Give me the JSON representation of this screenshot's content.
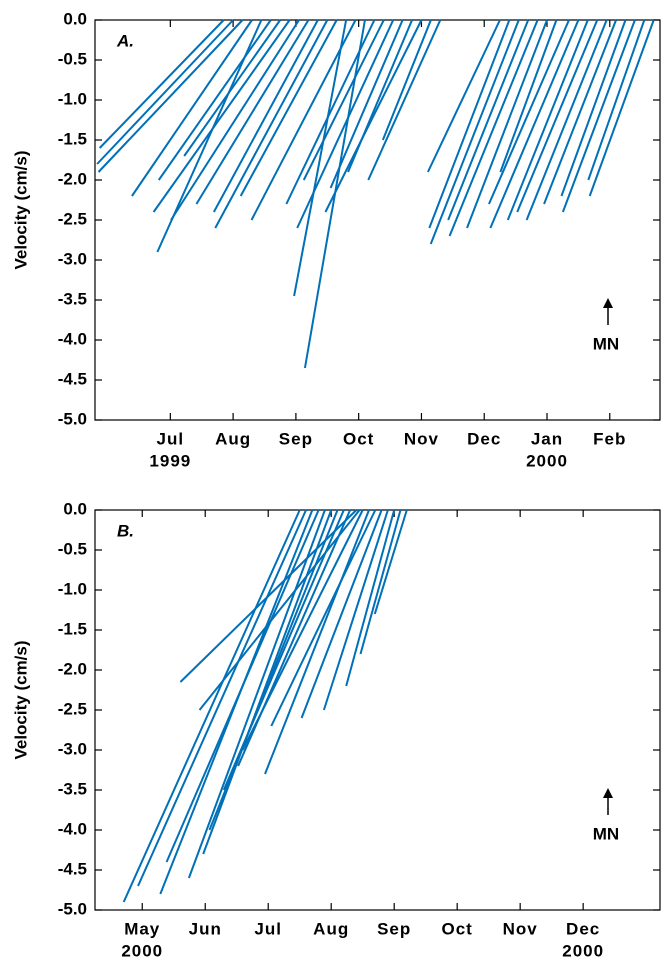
{
  "chart_data": [
    {
      "type": "stick",
      "panel_label": "A.",
      "ylabel": "Velocity (cm/s)",
      "annotation": "MN",
      "color": "#0070b8",
      "xlim": [
        -0.2,
        8.8
      ],
      "xticks": [
        {
          "value": 1,
          "label": "Jul"
        },
        {
          "value": 2,
          "label": "Aug"
        },
        {
          "value": 3,
          "label": "Sep"
        },
        {
          "value": 4,
          "label": "Oct"
        },
        {
          "value": 5,
          "label": "Nov"
        },
        {
          "value": 6,
          "label": "Dec"
        },
        {
          "value": 7,
          "label": "Jan"
        },
        {
          "value": 8,
          "label": "Feb"
        }
      ],
      "xtick_years": [
        {
          "value": 1,
          "label": "1999"
        },
        {
          "value": 7,
          "label": "2000"
        }
      ],
      "ylim": [
        -5.0,
        0.0
      ],
      "yticks": [
        {
          "value": 0,
          "label": "0.0"
        },
        {
          "value": -0.5,
          "label": "-0.5"
        },
        {
          "value": -1,
          "label": "-1.0"
        },
        {
          "value": -1.5,
          "label": "-1.5"
        },
        {
          "value": -2,
          "label": "-2.0"
        },
        {
          "value": -2.5,
          "label": "-2.5"
        },
        {
          "value": -3,
          "label": "-3.0"
        },
        {
          "value": -3.5,
          "label": "-3.5"
        },
        {
          "value": -4,
          "label": "-4.0"
        },
        {
          "value": -4.5,
          "label": "-4.5"
        },
        {
          "value": -5,
          "label": "-5.0"
        }
      ],
      "x": [
        1.85,
        2.0,
        2.15,
        2.3,
        2.45,
        2.6,
        2.75,
        2.9,
        3.05,
        3.2,
        3.35,
        3.5,
        3.65,
        3.8,
        3.95,
        4.1,
        4.25,
        4.4,
        4.55,
        4.7,
        4.85,
        5.0,
        5.15,
        5.3,
        6.25,
        6.4,
        6.55,
        6.7,
        6.85,
        7.0,
        7.15,
        7.35,
        7.5,
        7.65,
        7.8,
        7.95,
        8.1,
        8.25,
        8.4,
        8.55,
        8.7
      ],
      "values": [
        -1.6,
        -1.8,
        -1.9,
        -2.2,
        -2.9,
        -2.0,
        -1.7,
        -2.4,
        -2.5,
        -2.3,
        -2.4,
        -2.6,
        -2.2,
        -3.45,
        -2.5,
        -4.35,
        -2.3,
        -2.0,
        -2.6,
        -2.1,
        -1.9,
        -2.4,
        -1.5,
        -2.0,
        -1.9,
        -2.6,
        -2.8,
        -2.5,
        -2.7,
        -2.6,
        -1.9,
        -2.3,
        -2.6,
        -2.5,
        -2.4,
        -2.5,
        -2.3,
        -2.2,
        -2.4,
        -2.0,
        -2.2
      ],
      "u": [
        -1.55,
        -1.7,
        -1.8,
        -1.5,
        -1.3,
        -1.4,
        -1.2,
        -1.7,
        -1.6,
        -1.4,
        -1.3,
        -1.4,
        -1.2,
        -0.65,
        -1.3,
        -0.75,
        -1.1,
        -1.0,
        -1.2,
        -0.9,
        -0.8,
        -1.2,
        -0.6,
        -0.9,
        -0.9,
        -1.0,
        -1.1,
        -1.0,
        -1.1,
        -1.0,
        -0.7,
        -1.0,
        -1.1,
        -1.0,
        -1.0,
        -1.0,
        -0.9,
        -0.8,
        -0.9,
        -0.7,
        -0.8
      ]
    },
    {
      "type": "stick",
      "panel_label": "B.",
      "ylabel": "Velocity (cm/s)",
      "annotation": "MN",
      "color": "#0070b8",
      "xlim": [
        -0.75,
        8.22
      ],
      "xticks": [
        {
          "value": 0,
          "label": "May"
        },
        {
          "value": 1,
          "label": "Jun"
        },
        {
          "value": 2,
          "label": "Jul"
        },
        {
          "value": 3,
          "label": "Aug"
        },
        {
          "value": 4,
          "label": "Sep"
        },
        {
          "value": 5,
          "label": "Oct"
        },
        {
          "value": 6,
          "label": "Nov"
        },
        {
          "value": 7,
          "label": "Dec"
        }
      ],
      "xtick_years": [
        {
          "value": 0,
          "label": "2000"
        },
        {
          "value": 7,
          "label": "2000"
        }
      ],
      "ylim": [
        -5.0,
        0.0
      ],
      "yticks": [
        {
          "value": 0,
          "label": "0.0"
        },
        {
          "value": -0.5,
          "label": "-0.5"
        },
        {
          "value": -1,
          "label": "-1.0"
        },
        {
          "value": -1.5,
          "label": "-1.5"
        },
        {
          "value": -2,
          "label": "-2.0"
        },
        {
          "value": -2.5,
          "label": "-2.5"
        },
        {
          "value": -3,
          "label": "-3.0"
        },
        {
          "value": -3.5,
          "label": "-3.5"
        },
        {
          "value": -4,
          "label": "-4.0"
        },
        {
          "value": -4.5,
          "label": "-4.5"
        },
        {
          "value": -5,
          "label": "-5.0"
        }
      ],
      "x": [
        2.5,
        2.6,
        2.7,
        2.8,
        2.9,
        3.0,
        3.1,
        3.2,
        3.3,
        3.4,
        3.45,
        3.5,
        3.6,
        3.7,
        3.8,
        3.9,
        4.0,
        4.1,
        4.2
      ],
      "values": [
        -4.9,
        -4.7,
        -4.8,
        -4.4,
        -4.6,
        -4.3,
        -4.0,
        -3.5,
        -3.2,
        -2.15,
        -2.5,
        -3.0,
        -3.3,
        -2.7,
        -2.6,
        -2.5,
        -2.2,
        -1.8,
        -1.3
      ],
      "u": [
        -2.2,
        -2.1,
        -1.9,
        -1.9,
        -1.7,
        -1.6,
        -1.6,
        -1.5,
        -1.4,
        -2.2,
        -2.0,
        -1.5,
        -1.3,
        -1.3,
        -1.0,
        -0.8,
        -0.6,
        -0.5,
        -0.4
      ]
    }
  ]
}
